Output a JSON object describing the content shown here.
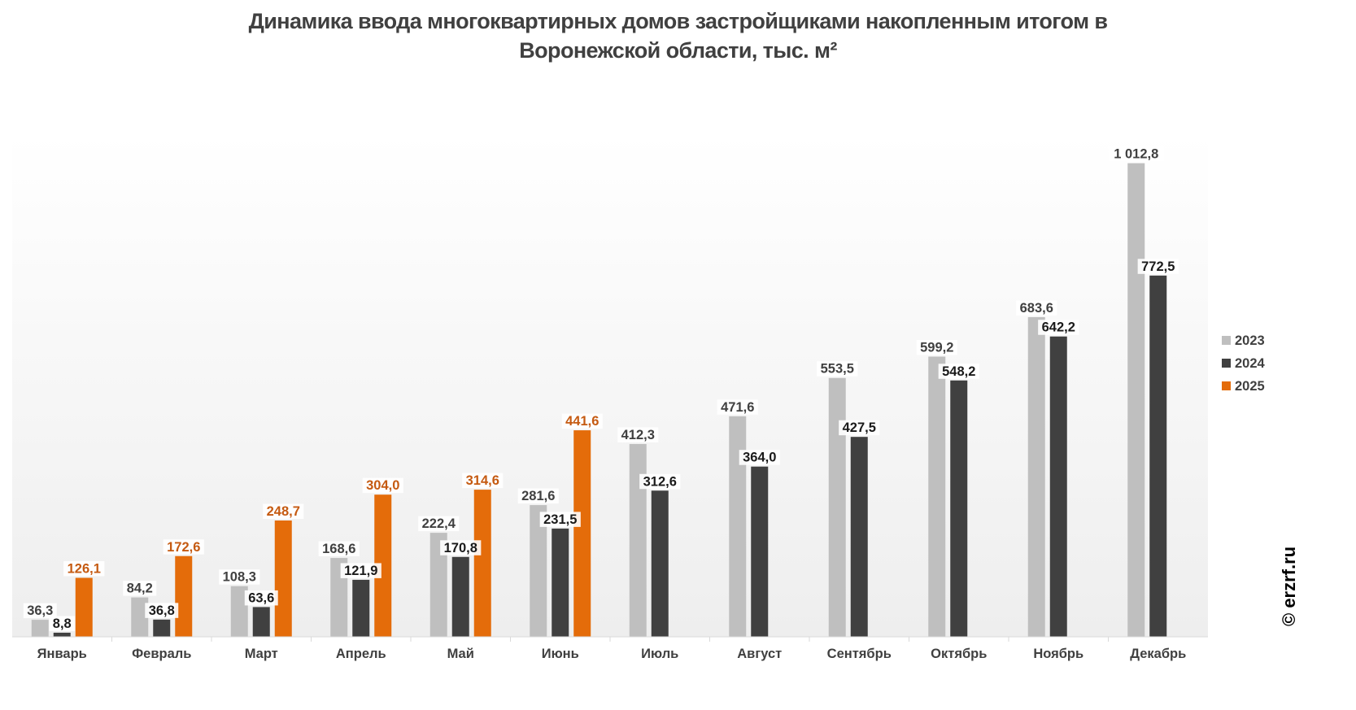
{
  "chart_data": {
    "type": "bar",
    "title": "Динамика ввода многоквартирных домов застройщиками накопленным итогом в Воронежской области, тыс. м²",
    "title_lines": [
      "Динамика ввода многоквартирных домов застройщиками накопленным итогом в",
      "Воронежской области, тыс. м²"
    ],
    "xlabel": "",
    "ylabel": "",
    "ylim": [
      0,
      1050
    ],
    "grid": false,
    "legend_position": "right",
    "categories": [
      "Январь",
      "Февраль",
      "Март",
      "Апрель",
      "Май",
      "Июнь",
      "Июль",
      "Август",
      "Сентябрь",
      "Октябрь",
      "Ноябрь",
      "Декабрь"
    ],
    "series": [
      {
        "name": "2023",
        "color": "#BFBFBF",
        "label_color": "#404040",
        "values": [
          36.3,
          84.2,
          108.3,
          168.6,
          222.4,
          281.6,
          412.3,
          471.6,
          553.5,
          599.2,
          683.6,
          1012.8
        ],
        "labels": [
          "36,3",
          "84,2",
          "108,3",
          "168,6",
          "222,4",
          "281,6",
          "412,3",
          "471,6",
          "553,5",
          "599,2",
          "683,6",
          "1 012,8"
        ]
      },
      {
        "name": "2024",
        "color": "#404040",
        "label_color": "#1a1a1a",
        "values": [
          8.8,
          36.8,
          63.6,
          121.9,
          170.8,
          231.5,
          312.6,
          364.0,
          427.5,
          548.2,
          642.2,
          772.5
        ],
        "labels": [
          "8,8",
          "36,8",
          "63,6",
          "121,9",
          "170,8",
          "231,5",
          "312,6",
          "364,0",
          "427,5",
          "548,2",
          "642,2",
          "772,5"
        ]
      },
      {
        "name": "2025",
        "color": "#E46C0A",
        "label_color": "#C55A11",
        "values": [
          126.1,
          172.6,
          248.7,
          304.0,
          314.6,
          441.6,
          null,
          null,
          null,
          null,
          null,
          null
        ],
        "labels": [
          "126,1",
          "172,6",
          "248,7",
          "304,0",
          "314,6",
          "441,6",
          "",
          "",
          "",
          "",
          "",
          ""
        ]
      }
    ]
  },
  "watermark": "© erzrf.ru"
}
